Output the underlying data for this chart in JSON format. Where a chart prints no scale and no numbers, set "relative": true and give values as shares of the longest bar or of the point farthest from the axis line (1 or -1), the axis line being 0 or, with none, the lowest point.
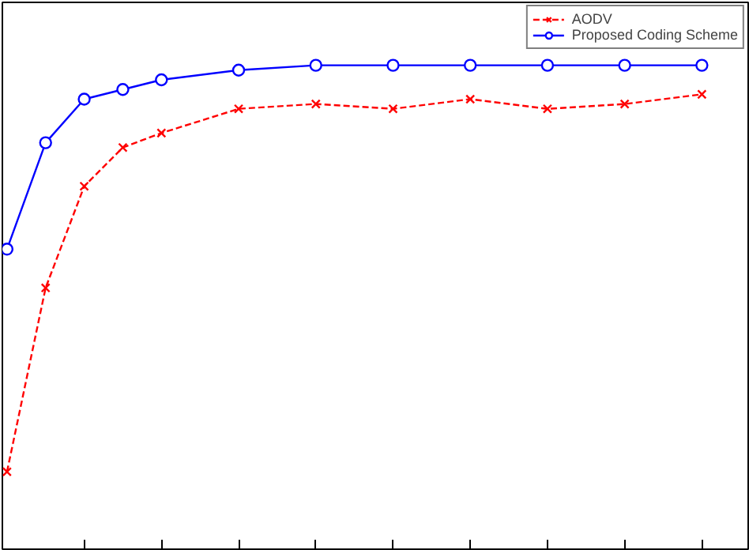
{
  "chart_data": {
    "type": "line",
    "relative": true,
    "categories": [
      null,
      null,
      null,
      null,
      null,
      null,
      null,
      null,
      null,
      null,
      null,
      null,
      null,
      null,
      null,
      null,
      null,
      null,
      null
    ],
    "legend": "top right",
    "series": [
      {
        "name": "AODV",
        "color": "#ff0000",
        "marker": "cross",
        "line_style": "dashed",
        "values": [
          0.16,
          0.54,
          0.75,
          0.83,
          0.86,
          null,
          0.91,
          null,
          0.92,
          null,
          0.91,
          null,
          0.93,
          null,
          0.91,
          null,
          0.92,
          null,
          0.94
        ]
      },
      {
        "name": "Proposed Coding Scheme",
        "color": "#0000ff",
        "marker": "circle",
        "line_style": "solid",
        "values": [
          0.62,
          0.84,
          0.93,
          0.95,
          0.97,
          null,
          0.99,
          null,
          1.0,
          null,
          1.0,
          null,
          1.0,
          null,
          1.0,
          null,
          1.0,
          null,
          1.0
        ]
      }
    ]
  }
}
